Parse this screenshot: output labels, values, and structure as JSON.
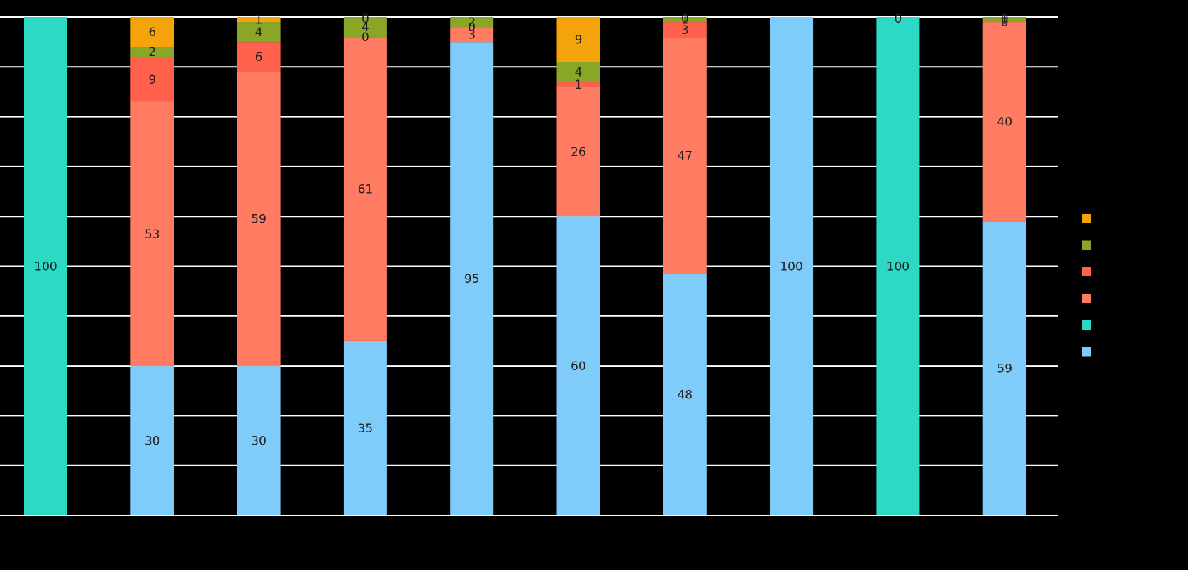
{
  "chart_data": {
    "type": "bar",
    "stacked": true,
    "normalized_percent": true,
    "categories": [
      "",
      "",
      "",
      "",
      "",
      "",
      "",
      "",
      "",
      ""
    ],
    "ylim": [
      0,
      100
    ],
    "grid": true,
    "legend_position": "right",
    "series": [
      {
        "color": "#7fccfb",
        "values": [
          0,
          30,
          30,
          35,
          95,
          60,
          48,
          100,
          0,
          59
        ]
      },
      {
        "color": "#2bd9c5",
        "values": [
          100,
          0,
          0,
          0,
          0,
          0,
          0,
          0,
          100,
          0
        ]
      },
      {
        "color": "#ff7b61",
        "values": [
          0,
          53,
          59,
          61,
          3,
          26,
          47,
          0,
          0,
          40
        ]
      },
      {
        "color": "#ff614d",
        "values": [
          0,
          9,
          6,
          0,
          0,
          1,
          3,
          0,
          0,
          0
        ]
      },
      {
        "color": "#89a627",
        "values": [
          0,
          2,
          4,
          4,
          2,
          4,
          1,
          0,
          0,
          1
        ]
      },
      {
        "color": "#f5a30a",
        "values": [
          0,
          6,
          1,
          0,
          0,
          9,
          0,
          0,
          0,
          0
        ]
      }
    ],
    "data_labels": [
      [
        "",
        "100",
        "",
        "",
        "",
        ""
      ],
      [
        "30",
        "",
        "53",
        "9",
        "2",
        "6"
      ],
      [
        "30",
        "",
        "59",
        "6",
        "4",
        "1"
      ],
      [
        "35",
        "",
        "61",
        "0",
        "4",
        "0"
      ],
      [
        "95",
        "",
        "3",
        "0",
        "2",
        ""
      ],
      [
        "60",
        "",
        "26",
        "1",
        "4",
        "9"
      ],
      [
        "48",
        "",
        "47",
        "3",
        "1",
        "0"
      ],
      [
        "100",
        "",
        "",
        "",
        "",
        ""
      ],
      [
        "",
        "100",
        "",
        "",
        "",
        "0"
      ],
      [
        "59",
        "",
        "40",
        "0",
        "1",
        "0"
      ]
    ]
  }
}
